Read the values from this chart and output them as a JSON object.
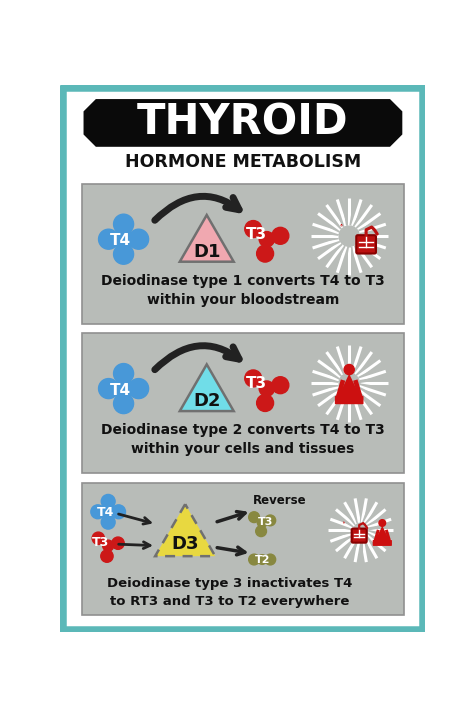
{
  "bg_color": "#ffffff",
  "border_color": "#5bb8b8",
  "title": "THYROID",
  "subtitle": "HORMONE METABOLISM",
  "title_bg": "#0a0a0a",
  "title_text_color": "#ffffff",
  "panel_bg": "#b8bcb8",
  "panel1_caption": "Deiodinase type 1 converts T4 to T3\nwithin your bloodstream",
  "panel2_caption": "Deiodinase type 2 converts T4 to T3\nwithin your cells and tissues",
  "panel3_caption": "Deiodinase type 3 inactivates T4\nto RT3 and T3 to T2 everywhere",
  "d1_color": "#f0a8b0",
  "d2_color": "#70dde8",
  "d3_color": "#e8d840",
  "t4_color": "#4898d8",
  "t3_color": "#cc1818",
  "rt3_color": "#888840",
  "t2_color": "#888840",
  "arrow_color": "#222222",
  "text_dark": "#111111",
  "heart_color": "#cc1010",
  "blood_bag_color": "#bb1010",
  "yoga_color": "#cc1010"
}
